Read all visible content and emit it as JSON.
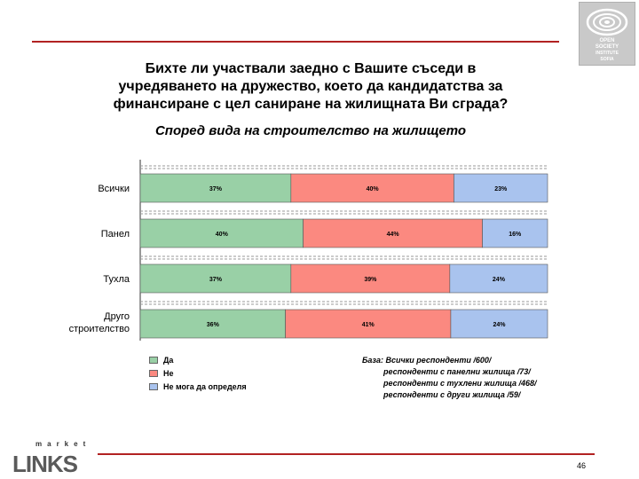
{
  "logo_text": [
    "OPEN",
    "SOCIETY",
    "INSTITUTE",
    "SOFIA"
  ],
  "title_lines": [
    "Бихте ли участвали заедно с Вашите съседи в",
    "учредяването на дружество, което да кандидатства за",
    "финансиране с цел саниране на жилищната Ви сграда?"
  ],
  "subtitle": "Според вида на строителство на жилището",
  "legend": [
    "Да",
    "Не",
    "Не мога да определя"
  ],
  "base_lines": [
    "База: Всички респонденти /600/",
    "респонденти с панелни жилища /73/",
    "респонденти с тухлени жилища /468/",
    "респонденти с други жилища /59/"
  ],
  "page_number": "46",
  "brand_small": "market",
  "brand_big": "LINKS",
  "colors": {
    "yes": "#99d0a6",
    "no": "#fb8980",
    "dont_know": "#a9c3ee",
    "accent": "#b22222"
  },
  "chart_data": {
    "type": "bar",
    "orientation": "horizontal-stacked-100",
    "categories": [
      "Всички",
      "Панел",
      "Тухла",
      "Друго строителство"
    ],
    "series": [
      {
        "name": "Да",
        "values": [
          37,
          40,
          37,
          36
        ],
        "labels": [
          "37%",
          "40%",
          "37%",
          "36%"
        ]
      },
      {
        "name": "Не",
        "values": [
          40,
          44,
          39,
          41
        ],
        "labels": [
          "40%",
          "44%",
          "39%",
          "41%"
        ]
      },
      {
        "name": "Не мога да определя",
        "values": [
          23,
          16,
          24,
          24
        ],
        "labels": [
          "23%",
          "16%",
          "24%",
          "24%"
        ]
      }
    ],
    "xlim": [
      0,
      100
    ],
    "legend_position": "bottom-left",
    "grid": "dashed separators between bars"
  }
}
